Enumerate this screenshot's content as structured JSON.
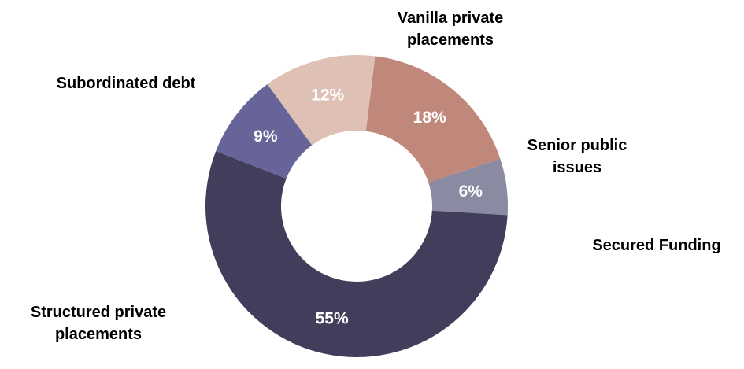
{
  "chart_data": {
    "type": "pie",
    "variant": "donut",
    "categories": [
      "Senior public issues",
      "Secured Funding",
      "Structured private placements",
      "Subordinated debt",
      "Vanilla private placements"
    ],
    "display_lines": [
      [
        "Senior public",
        "issues"
      ],
      [
        "Secured Funding"
      ],
      [
        "Structured private",
        "placements"
      ],
      [
        "Subordinated debt"
      ],
      [
        "Vanilla private",
        "placements"
      ]
    ],
    "values": [
      18,
      6,
      55,
      9,
      12
    ],
    "value_labels": [
      "18%",
      "6%",
      "55%",
      "9%",
      "12%"
    ],
    "unit": "%",
    "colors": [
      "#c0887a",
      "#8a8aa3",
      "#413d5a",
      "#67649a",
      "#dfc0b5"
    ],
    "label_color": "#ffffff",
    "legend": "none",
    "start_angle_deg": 83,
    "direction": "clockwise"
  }
}
